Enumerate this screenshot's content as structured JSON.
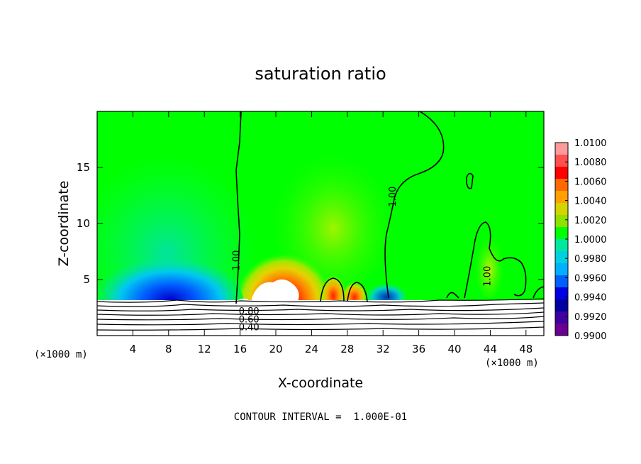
{
  "chart_data": {
    "type": "heatmap",
    "title": "saturation ratio",
    "xlabel": "X-coordinate",
    "ylabel": "Z-coordinate",
    "x_unit": "(×1000 m)",
    "y_unit": "(×1000 m)",
    "xlim": [
      0,
      50
    ],
    "ylim": [
      0,
      20
    ],
    "x_ticks": [
      4,
      8,
      12,
      16,
      20,
      24,
      28,
      32,
      36,
      40,
      44,
      48
    ],
    "y_ticks": [
      5,
      10,
      15
    ],
    "colorbar": {
      "levels": [
        "1.0100",
        "1.0080",
        "1.0060",
        "1.0040",
        "1.0020",
        "1.0000",
        "0.9980",
        "0.9960",
        "0.9940",
        "0.9920",
        "0.9900"
      ],
      "colors": [
        "#ff9a9a",
        "#ff5050",
        "#ff0000",
        "#ff6a00",
        "#ffa000",
        "#d4d400",
        "#90e000",
        "#00ff00",
        "#00e8a0",
        "#00d0e0",
        "#00b0ff",
        "#0060ff",
        "#0000e0",
        "#0000a0",
        "#4000a0",
        "#6a0090"
      ]
    },
    "contour_labels": [
      {
        "text": "1.00",
        "x": 15.5,
        "z": 6.7
      },
      {
        "text": "1.00",
        "x": 33.0,
        "z": 12.4
      },
      {
        "text": "1.00",
        "x": 43.6,
        "z": 5.3
      },
      {
        "text": "0.80",
        "x": 17.0,
        "z": 2.2
      },
      {
        "text": "0.60",
        "x": 17.0,
        "z": 1.5
      },
      {
        "text": "0.40",
        "x": 17.0,
        "z": 0.8
      }
    ],
    "footnote": "CONTOUR INTERVAL =  1.000E-01"
  }
}
